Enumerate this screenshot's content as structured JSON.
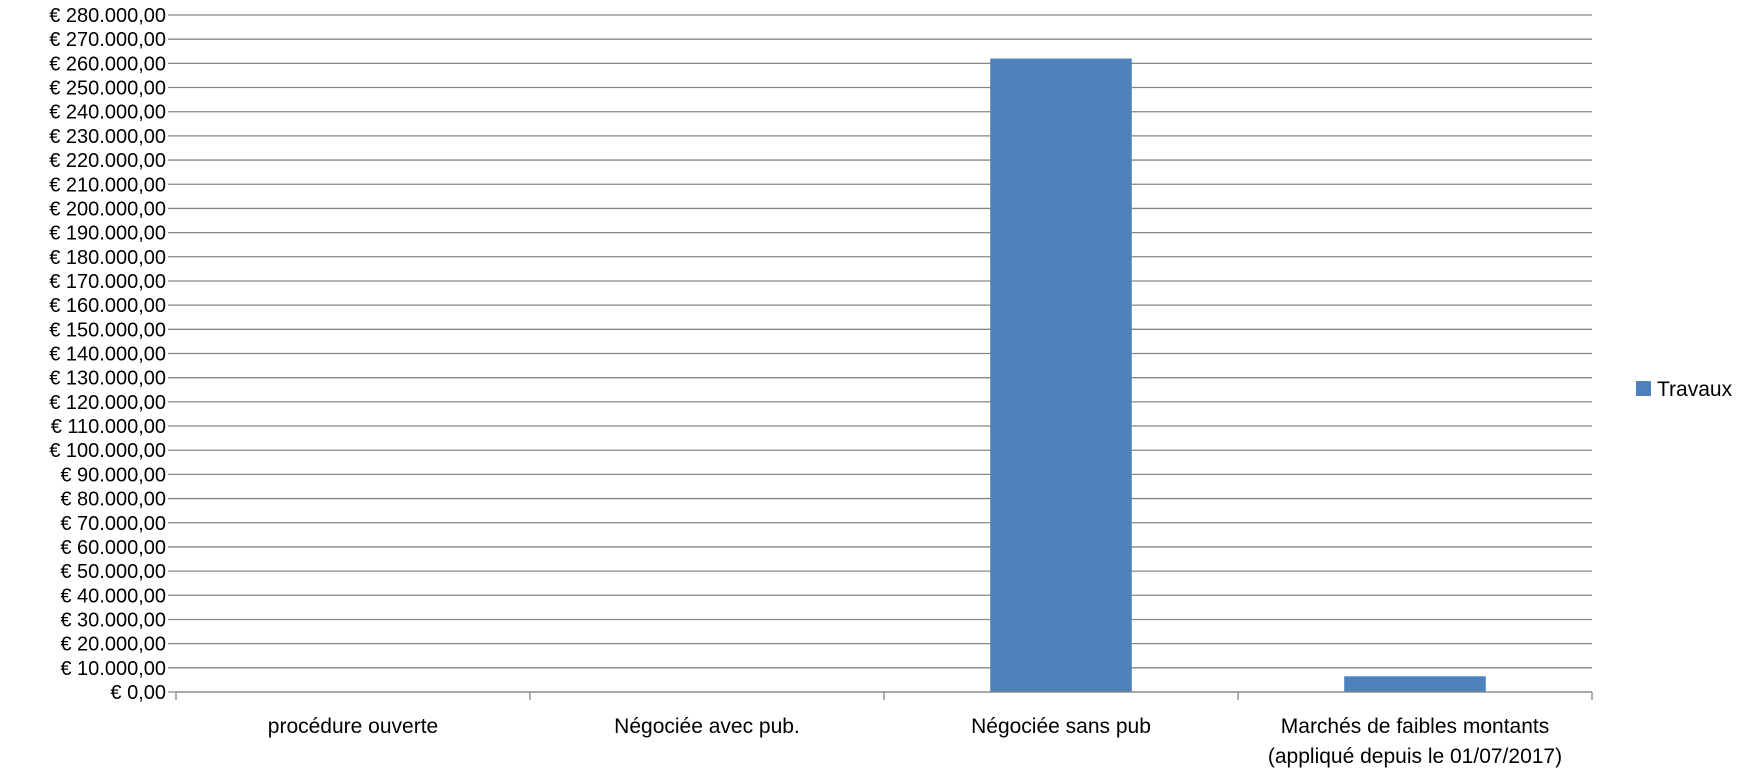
{
  "chart_data": {
    "type": "bar",
    "categories": [
      [
        "procédure ouverte"
      ],
      [
        "Négociée avec pub."
      ],
      [
        "Négociée sans pub"
      ],
      [
        "Marchés de faibles montants",
        "(appliqué depuis le 01/07/2017)"
      ]
    ],
    "series": [
      {
        "name": "Travaux",
        "values": [
          0,
          0,
          262000,
          6500
        ],
        "color": "#4f81bd"
      }
    ],
    "ylim": [
      0,
      280000
    ],
    "ytick_step": 10000,
    "ytick_labels": [
      "€ 0,00",
      "€ 10.000,00",
      "€ 20.000,00",
      "€ 30.000,00",
      "€ 40.000,00",
      "€ 50.000,00",
      "€ 60.000,00",
      "€ 70.000,00",
      "€ 80.000,00",
      "€ 90.000,00",
      "€ 100.000,00",
      "€ 110.000,00",
      "€ 120.000,00",
      "€ 130.000,00",
      "€ 140.000,00",
      "€ 150.000,00",
      "€ 160.000,00",
      "€ 170.000,00",
      "€ 180.000,00",
      "€ 190.000,00",
      "€ 200.000,00",
      "€ 210.000,00",
      "€ 220.000,00",
      "€ 230.000,00",
      "€ 240.000,00",
      "€ 250.000,00",
      "€ 260.000,00",
      "€ 270.000,00",
      "€ 280.000,00"
    ],
    "grid": true,
    "legend": "right",
    "gridline_color": "#868686",
    "axis_color": "#868686"
  }
}
